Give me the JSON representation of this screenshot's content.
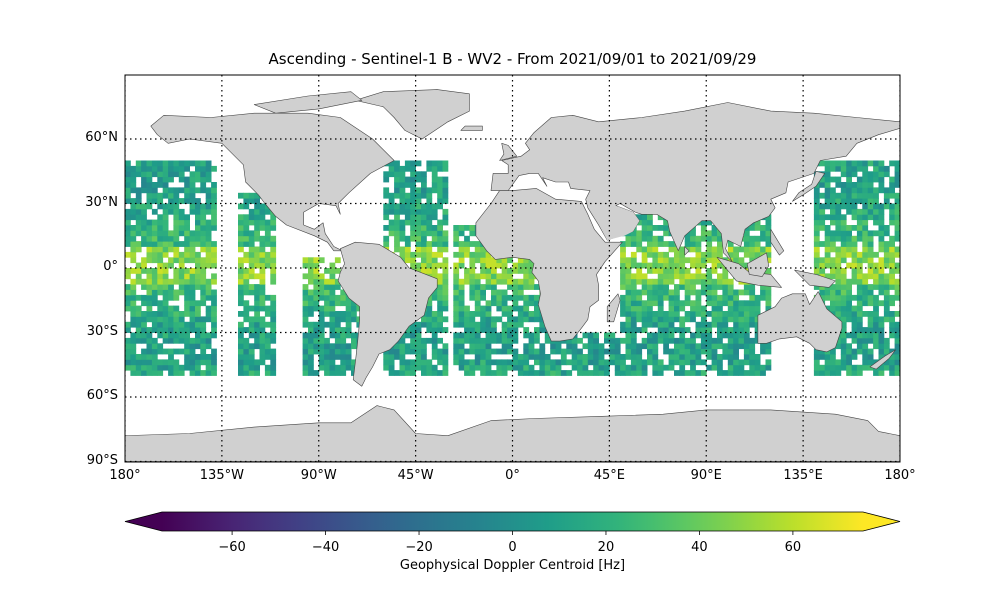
{
  "title": "Ascending - Sentinel-1 B - WV2 - From 2021/09/01 to 2021/09/29",
  "map": {
    "lon_range": [
      -180,
      180
    ],
    "lat_range": [
      -90,
      90
    ],
    "land_color": "#d0d0d0",
    "coast_color": "#444444",
    "gridlines": "dotted",
    "lat_ticks": [
      {
        "value": 60,
        "label": "60°N"
      },
      {
        "value": 30,
        "label": "30°N"
      },
      {
        "value": 0,
        "label": "0°"
      },
      {
        "value": -30,
        "label": "30°S"
      },
      {
        "value": -60,
        "label": "60°S"
      },
      {
        "value": -90,
        "label": "90°S"
      }
    ],
    "lon_ticks": [
      {
        "value": -180,
        "label": "180°"
      },
      {
        "value": -135,
        "label": "135°W"
      },
      {
        "value": -90,
        "label": "90°W"
      },
      {
        "value": -45,
        "label": "45°W"
      },
      {
        "value": 0,
        "label": "0°"
      },
      {
        "value": 45,
        "label": "45°E"
      },
      {
        "value": 90,
        "label": "90°E"
      },
      {
        "value": 135,
        "label": "135°E"
      },
      {
        "value": 180,
        "label": "180°"
      }
    ]
  },
  "colorbar": {
    "colormap": "viridis",
    "vmin": -75,
    "vmax": 75,
    "extend": "both",
    "ticks": [
      {
        "value": -60,
        "label": "−60"
      },
      {
        "value": -40,
        "label": "−40"
      },
      {
        "value": -20,
        "label": "−20"
      },
      {
        "value": 0,
        "label": "0"
      },
      {
        "value": 20,
        "label": "20"
      },
      {
        "value": 40,
        "label": "40"
      },
      {
        "value": 60,
        "label": "60"
      }
    ],
    "label": "Geophysical Doppler Centroid [Hz]"
  },
  "data_coverage": {
    "lat_extent": [
      -50,
      50
    ],
    "regions": [
      {
        "lon": [
          -180,
          -138
        ],
        "lat": [
          -50,
          50
        ]
      },
      {
        "lon": [
          -128,
          -112
        ],
        "lat": [
          -50,
          35
        ]
      },
      {
        "lon": [
          -98,
          -72
        ],
        "lat": [
          -50,
          5
        ]
      },
      {
        "lon": [
          -62,
          -30
        ],
        "lat": [
          -50,
          50
        ]
      },
      {
        "lon": [
          -28,
          20
        ],
        "lat": [
          -50,
          20
        ]
      },
      {
        "lon": [
          20,
          55
        ],
        "lat": [
          -50,
          -32
        ]
      },
      {
        "lon": [
          50,
          120
        ],
        "lat": [
          -50,
          25
        ]
      },
      {
        "lon": [
          140,
          180
        ],
        "lat": [
          -50,
          50
        ]
      }
    ]
  }
}
